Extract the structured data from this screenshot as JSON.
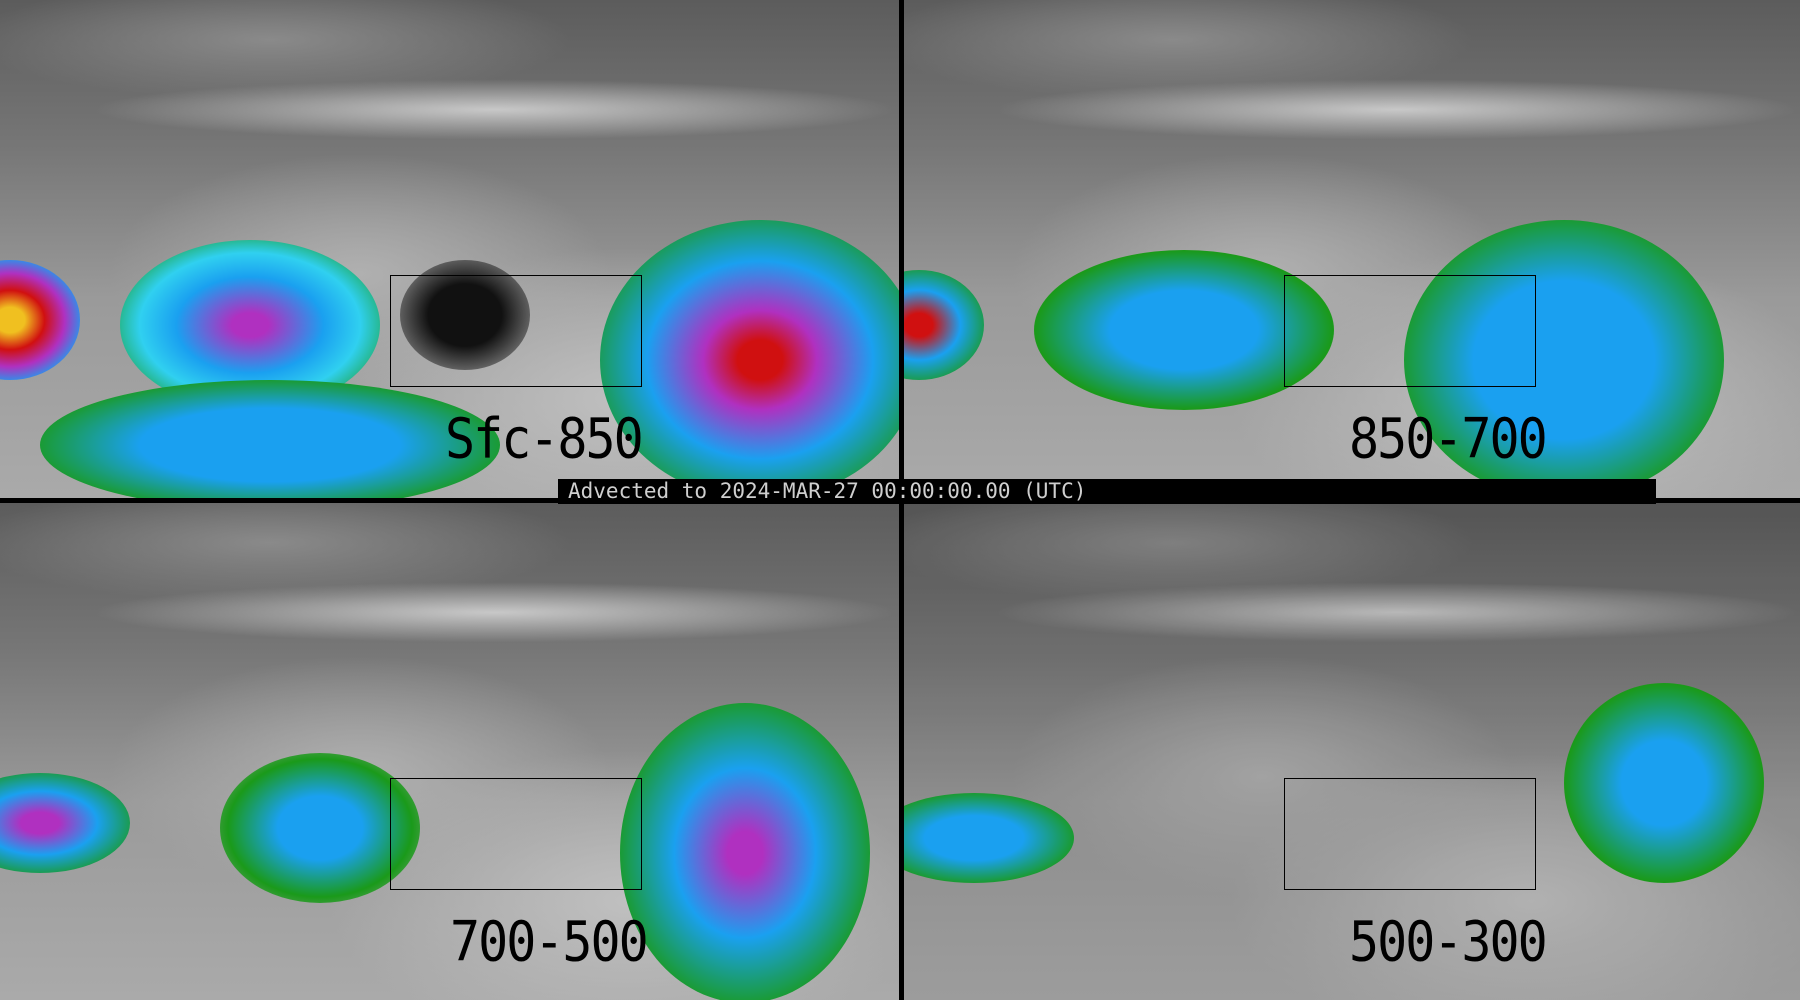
{
  "panels": [
    {
      "label": "Sfc-850"
    },
    {
      "label": "850-700"
    },
    {
      "label": "700-500"
    },
    {
      "label": "500-300"
    }
  ],
  "timestamp_bar": {
    "text": "Advected to 2024-MAR-27 00:00:00.00 (UTC)"
  },
  "colors": {
    "background": "#000000",
    "low": "#808080",
    "green": "#1a9a1a",
    "blue": "#1aa0f0",
    "magenta": "#b030c0",
    "red": "#d01010",
    "yellow": "#f0c020"
  }
}
